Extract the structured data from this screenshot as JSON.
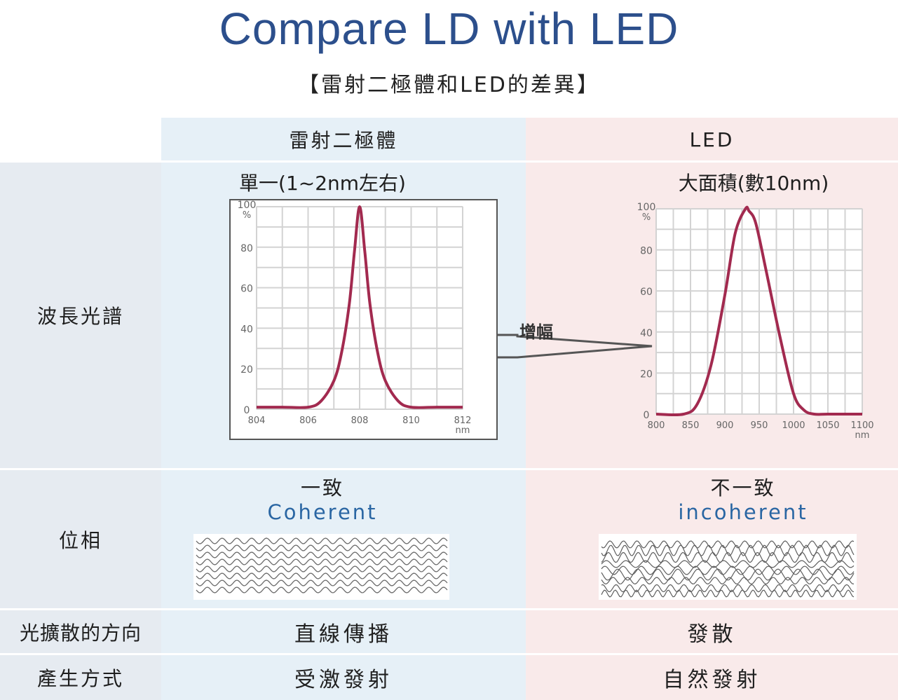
{
  "title": "Compare LD with LED",
  "subtitle": "【雷射二極體和LED的差異】",
  "table": {
    "col_headers": [
      "雷射二極體",
      "LED"
    ],
    "rows": {
      "spectrum": {
        "label": "波長光譜",
        "ld_text": "單一(1~2nm左右)",
        "led_text": "大面積(數10nm)"
      },
      "phase": {
        "label": "位相",
        "ld_text": "一致",
        "ld_en": "Coherent",
        "led_text": "不一致",
        "led_en": "incoherent"
      },
      "direction": {
        "label": "光擴散的方向",
        "ld_text": "直線傳播",
        "led_text": "發散"
      },
      "generation": {
        "label": "產生方式",
        "ld_text": "受激發射",
        "led_text": "自然發射"
      }
    }
  },
  "zoom_label": "增幅",
  "colors": {
    "title": "#2c4f8c",
    "curve": "#a22a4f",
    "coherent_text": "#2a66a3",
    "ld_bg": "#e6f0f7",
    "led_bg": "#f9eaea",
    "label_bg": "#e6ebf1"
  },
  "chart_data": [
    {
      "type": "line",
      "xlabel": "nm",
      "ylabel": "%",
      "xlim": [
        804,
        812
      ],
      "ylim": [
        0,
        100
      ],
      "xticks": [
        "804",
        "806",
        "808",
        "810",
        "812"
      ],
      "yticks": [
        "0",
        "20",
        "40",
        "60",
        "80",
        "100"
      ],
      "grid": true,
      "series": [
        {
          "x": [
            804,
            805,
            806,
            806.5,
            807,
            807.3,
            807.6,
            807.8,
            808,
            808.2,
            808.4,
            808.7,
            809,
            809.5,
            810,
            811,
            812
          ],
          "values": [
            1,
            1,
            1,
            4,
            14,
            28,
            52,
            78,
            100,
            78,
            52,
            28,
            14,
            4,
            1,
            1,
            1
          ]
        }
      ]
    },
    {
      "type": "line",
      "xlabel": "nm",
      "ylabel": "%",
      "xlim": [
        800,
        1100
      ],
      "ylim": [
        0,
        100
      ],
      "xticks": [
        "800",
        "850",
        "900",
        "950",
        "1000",
        "1050",
        "1100"
      ],
      "yticks": [
        "0",
        "20",
        "40",
        "60",
        "80",
        "100"
      ],
      "grid": true,
      "series": [
        {
          "x": [
            800,
            840,
            860,
            880,
            900,
            915,
            930,
            935,
            945,
            960,
            980,
            1000,
            1015,
            1030,
            1050,
            1100
          ],
          "values": [
            0,
            0,
            5,
            24,
            58,
            88,
            100,
            99,
            93,
            70,
            38,
            10,
            2,
            0,
            0,
            0
          ]
        }
      ]
    }
  ]
}
